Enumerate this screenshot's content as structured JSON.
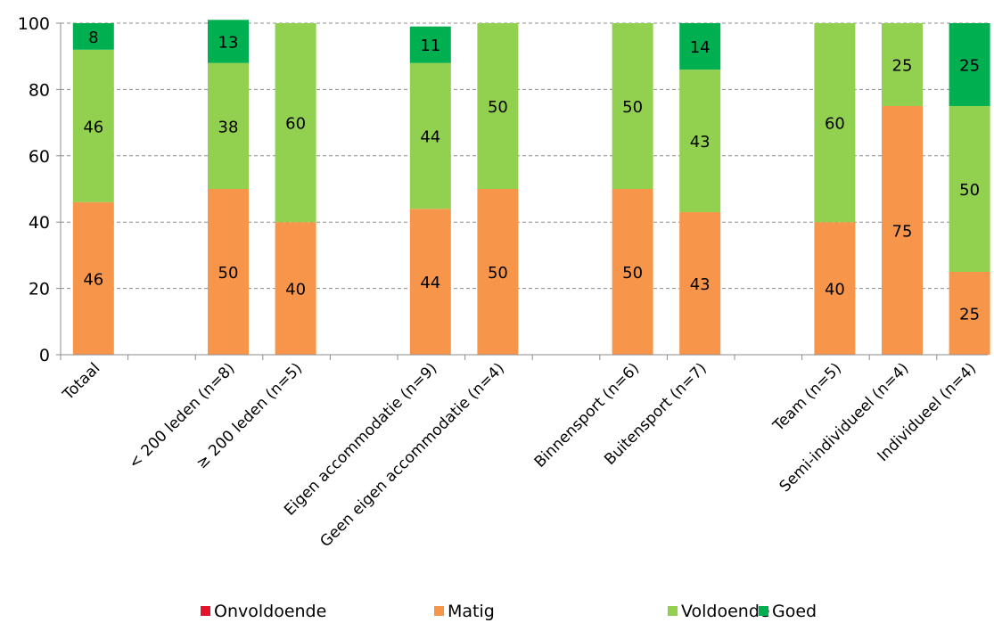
{
  "chart_data": {
    "type": "bar",
    "stacked": true,
    "ylim": [
      0,
      100
    ],
    "yticks": [
      0,
      20,
      40,
      60,
      80,
      100
    ],
    "grid": true,
    "legend_position": "bottom",
    "categories": [
      "Totaal",
      "< 200 leden (n=8)",
      "≥ 200 leden (n=5)",
      "Eigen accommodatie (n=9)",
      "Geen eigen accommodatie (n=4)",
      "Binnensport (n=6)",
      "Buitensport (n=7)",
      "Team (n=5)",
      "Semi-individueel (n=4)",
      "Individueel (n=4)"
    ],
    "series": [
      {
        "name": "Onvoldoende",
        "color": "#e3132c",
        "values": [
          0,
          0,
          0,
          0,
          0,
          0,
          0,
          0,
          0,
          0
        ]
      },
      {
        "name": "Matig",
        "color": "#f7964a",
        "values": [
          46,
          50,
          40,
          44,
          50,
          50,
          43,
          40,
          75,
          25
        ]
      },
      {
        "name": "Voldoende",
        "color": "#92d050",
        "values": [
          46,
          38,
          60,
          44,
          50,
          50,
          43,
          60,
          25,
          50
        ]
      },
      {
        "name": "Goed",
        "color": "#00b050",
        "values": [
          8,
          13,
          0,
          11,
          0,
          0,
          14,
          0,
          0,
          25
        ]
      }
    ]
  }
}
